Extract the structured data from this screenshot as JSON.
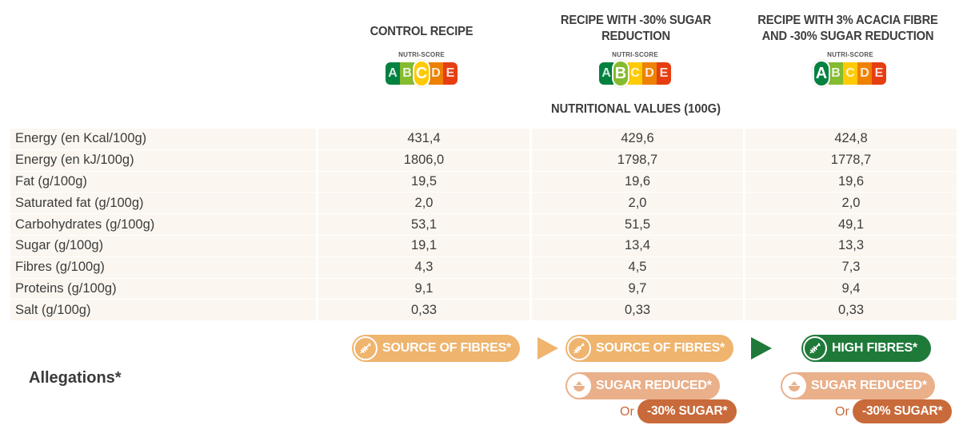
{
  "columns": [
    {
      "header": "CONTROL RECIPE",
      "nutri_active": "C"
    },
    {
      "header": "RECIPE WITH -30% SUGAR REDUCTION",
      "nutri_active": "B"
    },
    {
      "header": "RECIPE WITH 3% ACACIA FIBRE AND -30% SUGAR REDUCTION",
      "nutri_active": "A"
    }
  ],
  "nutri_score_label": "NUTRI-SCORE",
  "nutri_letters": [
    "A",
    "B",
    "C",
    "D",
    "E"
  ],
  "colors": {
    "A": "#038141",
    "B": "#85bb2f",
    "C": "#fecb02",
    "D": "#ee8100",
    "E": "#e63e11",
    "fibre_pill": "#efb46e",
    "high_fibre_pill": "#1f7a3a",
    "sugar_pill": "#e9b08a",
    "sugar_dark_pill": "#c86a3a",
    "row_bg": "#fbf6ef"
  },
  "section_title": "NUTRITIONAL VALUES (100G)",
  "rows": [
    {
      "label": "Energy (en Kcal/100g)",
      "values": [
        "431,4",
        "429,6",
        "424,8"
      ]
    },
    {
      "label": "Energy (en kJ/100g)",
      "values": [
        "1806,0",
        "1798,7",
        "1778,7"
      ]
    },
    {
      "label": "Fat (g/100g)",
      "values": [
        "19,5",
        "19,6",
        "19,6"
      ]
    },
    {
      "label": "Saturated fat (g/100g)",
      "values": [
        "2,0",
        "2,0",
        "2,0"
      ]
    },
    {
      "label": "Carbohydrates (g/100g)",
      "values": [
        "53,1",
        "51,5",
        "49,1"
      ]
    },
    {
      "label": "Sugar (g/100g)",
      "values": [
        "19,1",
        "13,4",
        "13,3"
      ]
    },
    {
      "label": "Fibres (g/100g)",
      "values": [
        "4,3",
        "4,5",
        "7,3"
      ]
    },
    {
      "label": "Proteins (g/100g)",
      "values": [
        "9,1",
        "9,7",
        "9,4"
      ]
    },
    {
      "label": "Salt (g/100g)",
      "values": [
        "0,33",
        "0,33",
        "0,33"
      ]
    }
  ],
  "allegations": {
    "title": "Allegations*",
    "col1_fibre": "SOURCE OF FIBRES*",
    "col2_fibre": "SOURCE OF FIBRES*",
    "col3_fibre": "HIGH FIBRES*",
    "col2_sugar": "SUGAR REDUCED*",
    "col3_sugar": "SUGAR REDUCED*",
    "or_label": "Or",
    "col2_sugar_alt": "-30% SUGAR*",
    "col3_sugar_alt": "-30% SUGAR*"
  }
}
